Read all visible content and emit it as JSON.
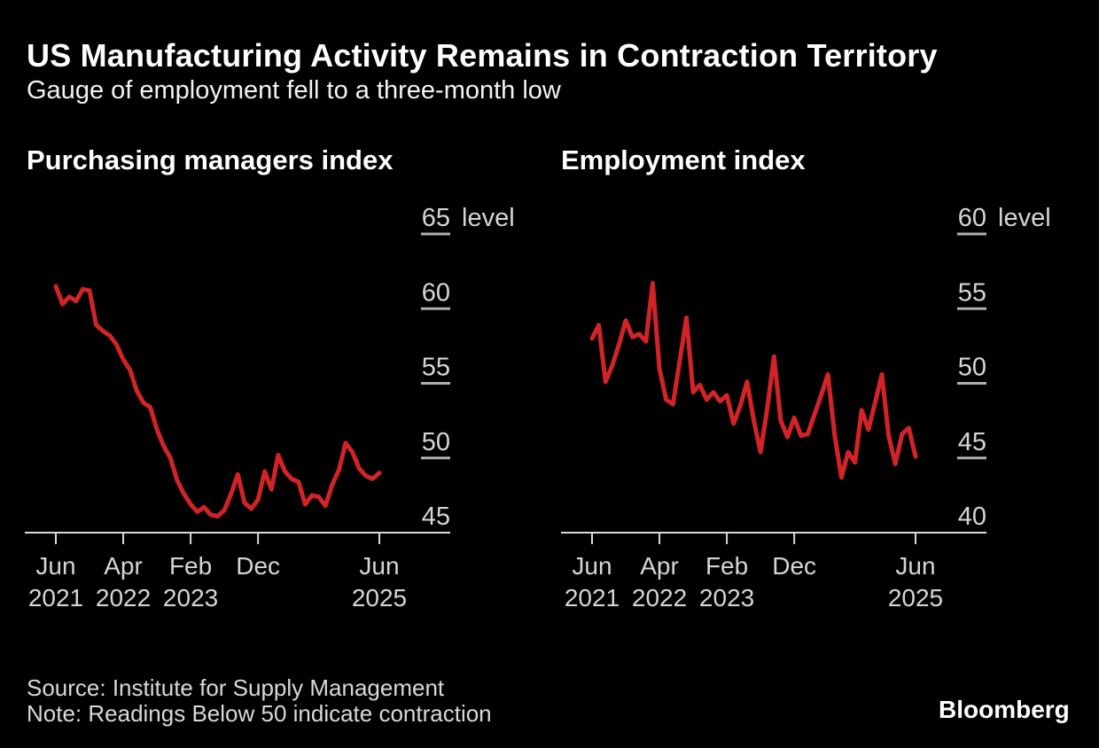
{
  "header": {
    "title": "US Manufacturing Activity Remains in Contraction Territory",
    "subtitle": "Gauge of employment fell to a three-month low"
  },
  "footer": {
    "source": "Source: Institute for Supply Management",
    "note": "Note: Readings Below 50 indicate contraction",
    "brand": "Bloomberg"
  },
  "colors": {
    "background": "#000000",
    "line_red": "#d22328",
    "axis": "#dcd9d5",
    "tick_dash": "#b3b0ad",
    "axis_text": "#d8d5d1",
    "title_text": "#ffffff",
    "footer_text": "#dbd8d5"
  },
  "chart_data": [
    {
      "type": "line",
      "title": "Purchasing managers index",
      "unit_label": "level",
      "x_start": "Jun 2021",
      "x_end": "Jun 2025",
      "interval": "monthly",
      "months_total": 48,
      "x_ticks": [
        {
          "month": "Jun",
          "year": "2021",
          "index": 0
        },
        {
          "month": "Apr",
          "year": "2022",
          "index": 10
        },
        {
          "month": "Feb",
          "year": "2023",
          "index": 20
        },
        {
          "month": "Dec",
          "year": "",
          "index": 30
        },
        {
          "month": "Jun",
          "year": "2025",
          "index": 48
        }
      ],
      "y_ticks": [
        45,
        50,
        55,
        60,
        65
      ],
      "ylim": [
        45,
        67
      ],
      "grid": false,
      "legend": "none",
      "series": [
        {
          "color": "#d22328",
          "values": [
            61.5,
            60.3,
            60.8,
            60.5,
            61.3,
            61.2,
            58.9,
            58.5,
            58.2,
            57.6,
            56.6,
            55.9,
            54.5,
            53.7,
            53.4,
            51.9,
            50.8,
            50.0,
            48.5,
            47.6,
            46.9,
            46.4,
            46.7,
            46.2,
            46.1,
            46.5,
            47.6,
            48.9,
            47.0,
            46.6,
            47.2,
            49.1,
            47.9,
            50.2,
            49.1,
            48.6,
            48.4,
            46.9,
            47.5,
            47.4,
            46.8,
            48.2,
            49.2,
            51.0,
            50.4,
            49.3,
            48.8,
            48.6,
            49.0
          ]
        }
      ]
    },
    {
      "type": "line",
      "title": "Employment index",
      "unit_label": "level",
      "x_start": "Jun 2021",
      "x_end": "Jun 2025",
      "interval": "monthly",
      "months_total": 48,
      "x_ticks": [
        {
          "month": "Jun",
          "year": "2021",
          "index": 0
        },
        {
          "month": "Apr",
          "year": "2022",
          "index": 10
        },
        {
          "month": "Feb",
          "year": "2023",
          "index": 20
        },
        {
          "month": "Dec",
          "year": "",
          "index": 30
        },
        {
          "month": "Jun",
          "year": "2025",
          "index": 48
        }
      ],
      "y_ticks": [
        40,
        45,
        50,
        55,
        60
      ],
      "ylim": [
        40,
        62
      ],
      "grid": false,
      "legend": "none",
      "series": [
        {
          "color": "#d22328",
          "values": [
            53.0,
            53.9,
            50.1,
            51.2,
            52.6,
            54.2,
            53.1,
            53.3,
            52.8,
            56.7,
            51.0,
            48.9,
            48.6,
            51.5,
            54.4,
            49.4,
            49.9,
            48.9,
            49.4,
            48.8,
            49.2,
            47.3,
            48.5,
            50.1,
            47.5,
            45.4,
            48.3,
            51.8,
            47.5,
            46.4,
            47.7,
            46.5,
            46.6,
            47.9,
            49.2,
            50.6,
            46.5,
            43.7,
            45.4,
            44.7,
            48.2,
            46.9,
            48.7,
            50.6,
            46.5,
            44.6,
            46.6,
            47.0,
            45.1
          ]
        }
      ]
    }
  ]
}
